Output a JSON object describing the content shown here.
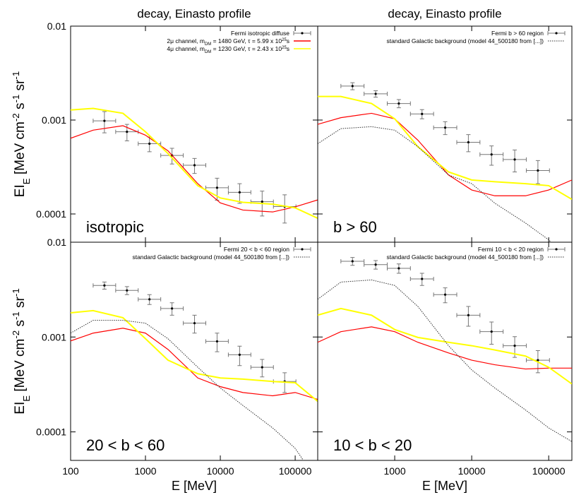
{
  "chart_data": [
    {
      "type": "line",
      "title": "decay, Einasto profile",
      "label": "isotropic",
      "ylabel": [
        {
          "text": "EI"
        },
        {
          "text": "E",
          "shift": "sub"
        },
        {
          "text": " [MeV cm"
        },
        {
          "text": "-2",
          "shift": "super"
        },
        {
          "text": " s"
        },
        {
          "text": "-1",
          "shift": "super"
        },
        {
          "text": " sr"
        },
        {
          "text": "-1",
          "shift": "super"
        }
      ],
      "xlog": true,
      "ylog": true,
      "xlim": [
        100,
        200000
      ],
      "ylim": [
        5e-05,
        0.01
      ],
      "xticks": [
        100,
        1000,
        10000,
        100000
      ],
      "yticks": [
        0.01,
        0.001,
        0.0001
      ],
      "show_xtick_labels": false,
      "show_ytick_labels": true,
      "series": [
        {
          "name": "Fermi isotropic diffuse",
          "type": "errorbar",
          "color": "#000000",
          "x": [
            283,
            566,
            1131,
            2263,
            4525,
            9051,
            18102,
            36204,
            72408
          ],
          "bins": [
            200,
            400,
            800,
            1600,
            3200,
            6400,
            12800,
            25600,
            51200,
            102400
          ],
          "values": [
            0.00098,
            0.00075,
            0.00056,
            0.00042,
            0.00033,
            0.00019,
            0.00017,
            0.000135,
            0.00012
          ],
          "yerr": [
            0.00025,
            0.00015,
            0.0001,
            8e-05,
            6e-05,
            5e-05,
            4e-05,
            4e-05,
            4e-05
          ]
        },
        {
          "name": [
            {
              "text": "2μ channel, m"
            },
            {
              "text": "DM",
              "shift": "sub"
            },
            {
              "text": " = 1480 GeV, τ = 5.99 x 10"
            },
            {
              "text": "25",
              "shift": "super"
            },
            {
              "text": "s"
            }
          ],
          "color": "#ff0000",
          "x": [
            100,
            200,
            500,
            1000,
            2000,
            5000,
            10000,
            20000,
            50000,
            100000,
            200000
          ],
          "values": [
            0.00064,
            0.00078,
            0.00087,
            0.00069,
            0.00047,
            0.00021,
            0.000131,
            0.00011,
            0.000105,
            0.000119,
            0.000141
          ]
        },
        {
          "name": [
            {
              "text": "4μ channel, m"
            },
            {
              "text": "DM",
              "shift": "sub"
            },
            {
              "text": " = 1230 GeV, τ = 2.43 x 10"
            },
            {
              "text": "25",
              "shift": "super"
            },
            {
              "text": "s"
            }
          ],
          "color": "#ffff00",
          "x": [
            100,
            200,
            500,
            1000,
            2000,
            5000,
            10000,
            20000,
            50000,
            100000,
            200000
          ],
          "values": [
            0.00128,
            0.00133,
            0.00118,
            0.00075,
            0.00044,
            0.0002,
            0.000148,
            0.000133,
            0.000127,
            0.000116,
            9e-05
          ]
        }
      ]
    },
    {
      "type": "line",
      "title": "decay, Einasto profile",
      "label": "b > 60",
      "xlog": true,
      "ylog": true,
      "xlim": [
        100,
        200000
      ],
      "ylim": [
        5e-05,
        0.01
      ],
      "xticks": [
        100,
        1000,
        10000,
        100000
      ],
      "yticks": [
        0.01,
        0.001,
        0.0001
      ],
      "show_xtick_labels": false,
      "show_ytick_labels": false,
      "series": [
        {
          "name": "Fermi b > 60 region",
          "type": "errorbar",
          "color": "#000000",
          "x": [
            283,
            566,
            1131,
            2263,
            4525,
            9051,
            18102,
            36204,
            72408
          ],
          "bins": [
            200,
            400,
            800,
            1600,
            3200,
            6400,
            12800,
            25600,
            51200,
            102400
          ],
          "values": [
            0.0023,
            0.0019,
            0.0015,
            0.00116,
            0.00083,
            0.00058,
            0.00043,
            0.00038,
            0.00029
          ],
          "yerr": [
            0.0002,
            0.00015,
            0.00015,
            0.00013,
            0.00013,
            0.00012,
            0.0001,
            0.0001,
            8e-05
          ]
        },
        {
          "color": "#ff0000",
          "x": [
            100,
            200,
            500,
            1000,
            2000,
            5000,
            10000,
            20000,
            50000,
            100000,
            200000
          ],
          "values": [
            0.0009,
            0.00106,
            0.00118,
            0.00103,
            0.00061,
            0.00026,
            0.00018,
            0.000156,
            0.000156,
            0.00018,
            0.00023
          ]
        },
        {
          "color": "#ffff00",
          "x": [
            100,
            200,
            500,
            1000,
            2000,
            5000,
            10000,
            20000,
            50000,
            100000,
            200000
          ],
          "values": [
            0.00178,
            0.00178,
            0.0015,
            0.00103,
            0.00052,
            0.00028,
            0.00023,
            0.00022,
            0.00021,
            0.0002,
            0.000143
          ]
        },
        {
          "name": "standard Galactic background (model 44_500180 from [...])",
          "color": "#333333",
          "dotted": true,
          "x": [
            100,
            200,
            500,
            1000,
            2000,
            5000,
            10000,
            20000,
            50000,
            100000,
            200000
          ],
          "values": [
            0.00056,
            0.00081,
            0.00085,
            0.00078,
            0.00052,
            0.00026,
            0.00021,
            0.00013,
            8e-05,
            5.3e-05,
            3e-05
          ]
        }
      ]
    },
    {
      "type": "line",
      "label": "20 < b < 60",
      "xlabel": "E [MeV]",
      "ylabel": [
        {
          "text": "EI"
        },
        {
          "text": "E",
          "shift": "sub"
        },
        {
          "text": " [MeV cm"
        },
        {
          "text": "-2",
          "shift": "super"
        },
        {
          "text": " s"
        },
        {
          "text": "-1",
          "shift": "super"
        },
        {
          "text": " sr"
        },
        {
          "text": "-1",
          "shift": "super"
        }
      ],
      "xlog": true,
      "ylog": true,
      "xlim": [
        100,
        200000
      ],
      "ylim": [
        5e-05,
        0.01
      ],
      "xticks": [
        100,
        1000,
        10000,
        100000
      ],
      "yticks": [
        0.01,
        0.001,
        0.0001
      ],
      "show_xtick_labels": true,
      "show_ytick_labels": true,
      "series": [
        {
          "name": "Fermi 20 < b < 60 region",
          "type": "errorbar",
          "color": "#000000",
          "x": [
            283,
            566,
            1131,
            2263,
            4525,
            9051,
            18102,
            36204,
            72408
          ],
          "bins": [
            200,
            400,
            800,
            1600,
            3200,
            6400,
            12800,
            25600,
            51200,
            102400
          ],
          "values": [
            0.0035,
            0.0031,
            0.0025,
            0.002,
            0.0014,
            0.0009,
            0.00065,
            0.00048,
            0.00034
          ],
          "yerr": [
            0.0003,
            0.0003,
            0.0003,
            0.0003,
            0.0003,
            0.0002,
            0.00015,
            0.0001,
            8e-05
          ]
        },
        {
          "color": "#ff0000",
          "x": [
            100,
            200,
            500,
            1000,
            2000,
            5000,
            10000,
            20000,
            50000,
            100000,
            200000
          ],
          "values": [
            0.00091,
            0.0011,
            0.00124,
            0.0011,
            0.00074,
            0.00037,
            0.0003,
            0.00026,
            0.00024,
            0.00026,
            0.00022
          ]
        },
        {
          "color": "#ffff00",
          "x": [
            100,
            200,
            500,
            1000,
            2000,
            5000,
            10000,
            20000,
            50000,
            100000,
            200000
          ],
          "values": [
            0.0018,
            0.0019,
            0.0016,
            0.00096,
            0.00057,
            0.00041,
            0.00037,
            0.00036,
            0.00034,
            0.00033,
            0.00021
          ]
        },
        {
          "name": "standard Galactic background (model 44_500180 from [...])",
          "color": "#333333",
          "dotted": true,
          "x": [
            100,
            200,
            500,
            1000,
            2000,
            5000,
            10000,
            20000,
            50000,
            100000,
            200000
          ],
          "values": [
            0.0011,
            0.0015,
            0.0015,
            0.0014,
            0.00096,
            0.00048,
            0.00029,
            0.00019,
            0.00011,
            6.7e-05,
            3e-05
          ]
        }
      ]
    },
    {
      "type": "line",
      "label": "10 < b < 20",
      "xlabel": "E [MeV]",
      "xlog": true,
      "ylog": true,
      "xlim": [
        100,
        200000
      ],
      "ylim": [
        5e-05,
        0.01
      ],
      "xticks": [
        1000,
        10000,
        100000
      ],
      "yticks": [
        0.01,
        0.001,
        0.0001
      ],
      "show_xtick_labels": true,
      "show_ytick_labels": false,
      "series": [
        {
          "name": "Fermi 10 < b < 20 region",
          "type": "errorbar",
          "color": "#000000",
          "x": [
            283,
            566,
            1131,
            2263,
            4525,
            9051,
            18102,
            36204,
            72408
          ],
          "bins": [
            200,
            400,
            800,
            1600,
            3200,
            6400,
            12800,
            25600,
            51200,
            102400
          ],
          "values": [
            0.0063,
            0.0058,
            0.0053,
            0.0041,
            0.0028,
            0.0017,
            0.00114,
            0.00081,
            0.00057
          ],
          "yerr": [
            0.0006,
            0.0006,
            0.0006,
            0.0006,
            0.0005,
            0.0004,
            0.0003,
            0.0002,
            0.00015
          ]
        },
        {
          "color": "#ff0000",
          "x": [
            100,
            200,
            500,
            1000,
            2000,
            5000,
            10000,
            20000,
            50000,
            100000,
            200000
          ],
          "values": [
            0.00088,
            0.00114,
            0.00128,
            0.00114,
            0.00088,
            0.00068,
            0.00057,
            0.00051,
            0.00046,
            0.00047,
            0.00047
          ]
        },
        {
          "color": "#ffff00",
          "x": [
            100,
            200,
            500,
            1000,
            2000,
            5000,
            10000,
            20000,
            50000,
            100000,
            200000
          ],
          "values": [
            0.0017,
            0.002,
            0.0017,
            0.0012,
            0.00099,
            0.00088,
            0.00081,
            0.00073,
            0.00063,
            0.00048,
            0.00032
          ]
        },
        {
          "name": "standard Galactic background (model 44_500180 from [...])",
          "color": "#333333",
          "dotted": true,
          "x": [
            100,
            200,
            500,
            1000,
            2000,
            5000,
            10000,
            20000,
            50000,
            100000,
            200000
          ],
          "values": [
            0.0025,
            0.0038,
            0.004,
            0.0035,
            0.0021,
            0.00081,
            0.00045,
            0.00029,
            0.00017,
            0.00011,
            7.9e-05
          ]
        }
      ]
    }
  ]
}
